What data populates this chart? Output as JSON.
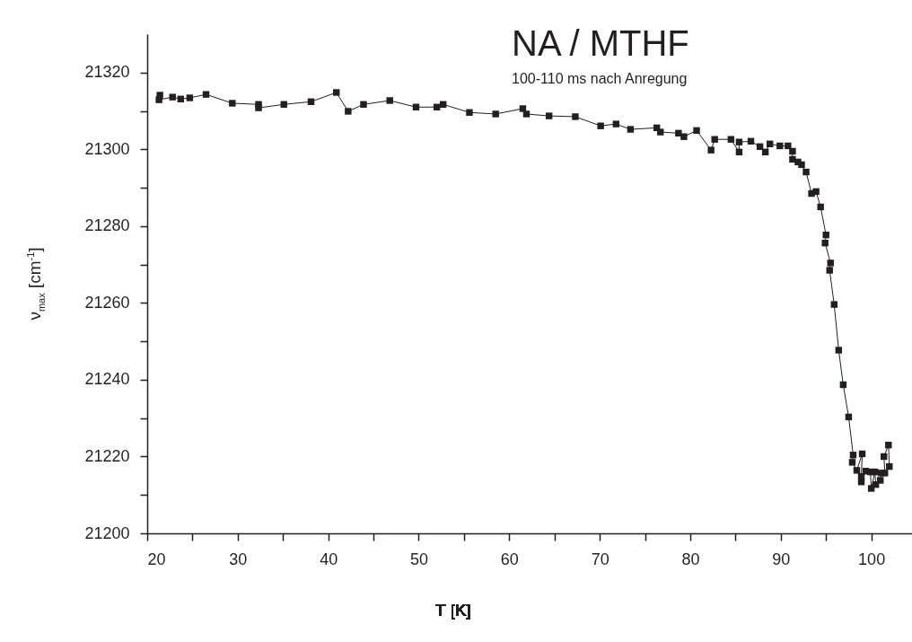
{
  "chart_data": {
    "type": "line",
    "title": "NA / MTHF",
    "subtitle": "100-110 ms nach Anregung",
    "xlabel": "T [K]",
    "ylabel": "ν$_{max}$ [cm$^{-1}$]",
    "x": [
      21.4,
      21.3,
      22.8,
      23.7,
      24.7,
      26.5,
      29.4,
      32.3,
      32.3,
      35.1,
      38.1,
      40.9,
      42.2,
      43.9,
      46.8,
      49.7,
      52.0,
      52.7,
      55.6,
      58.5,
      61.5,
      61.9,
      64.4,
      67.3,
      70.1,
      71.8,
      73.4,
      76.3,
      76.7,
      78.7,
      79.3,
      80.7,
      82.3,
      82.7,
      84.5,
      85.4,
      85.4,
      86.7,
      87.7,
      88.3,
      88.8,
      89.9,
      90.8,
      91.3,
      91.3,
      91.9,
      92.3,
      92.8,
      93.4,
      93.9,
      94.4,
      95.0,
      94.9,
      95.5,
      95.4,
      95.9,
      96.4,
      96.9,
      97.5,
      98.0,
      97.9,
      98.4,
      99.0,
      98.9,
      98.9,
      99.4,
      99.9,
      100.0,
      100.4,
      100.5,
      101.0,
      101.1,
      101.5,
      101.4,
      101.9,
      102.0
    ],
    "series": [
      {
        "color": "#231f20",
        "values": [
          21314.1,
          21312.9,
          21313.6,
          21313.1,
          21313.4,
          21314.3,
          21312.0,
          21311.7,
          21310.8,
          21311.7,
          21312.4,
          21314.8,
          21309.9,
          21311.7,
          21312.7,
          21311.0,
          21311.0,
          21311.7,
          21309.6,
          21309.2,
          21310.6,
          21309.2,
          21308.7,
          21308.5,
          21306.1,
          21306.6,
          21305.2,
          21305.6,
          21304.5,
          21304.2,
          21303.3,
          21304.9,
          21299.8,
          21302.6,
          21302.6,
          21299.3,
          21301.9,
          21302.1,
          21300.7,
          21299.3,
          21301.4,
          21300.9,
          21300.9,
          21299.5,
          21297.4,
          21296.7,
          21296.0,
          21294.1,
          21288.5,
          21289.0,
          21285.0,
          21277.7,
          21275.6,
          21270.4,
          21268.5,
          21259.6,
          21247.7,
          21238.7,
          21230.3,
          21220.4,
          21218.5,
          21216.4,
          21220.7,
          21214.8,
          21213.4,
          21216.2,
          21216.0,
          21211.7,
          21216.0,
          21212.7,
          21213.8,
          21215.7,
          21215.7,
          21220.0,
          21223.0,
          21217.4
        ]
      }
    ],
    "xlim": [
      20,
      104.5
    ],
    "ylim": [
      21200,
      21330
    ],
    "xticks": [
      20,
      {
        "value": 25,
        "label": null
      },
      30,
      {
        "value": 35,
        "label": null
      },
      40,
      {
        "value": 45,
        "label": null
      },
      50,
      {
        "value": 55,
        "label": null
      },
      60,
      {
        "value": 65,
        "label": null
      },
      70,
      {
        "value": 75,
        "label": null
      },
      80,
      {
        "value": 85,
        "label": null
      },
      90,
      {
        "value": 95,
        "label": null
      },
      100
    ],
    "yticks": [
      21200,
      {
        "value": 21210,
        "label": null
      },
      21220,
      {
        "value": 21230,
        "label": null
      },
      21240,
      {
        "value": 21250,
        "label": null
      },
      21260,
      {
        "value": 21270,
        "label": null
      },
      21280,
      {
        "value": 21290,
        "label": null
      },
      21300,
      {
        "value": 21310,
        "label": null
      },
      21320
    ],
    "marker": "square",
    "line_style": "solid",
    "grid": false,
    "legend": false
  }
}
